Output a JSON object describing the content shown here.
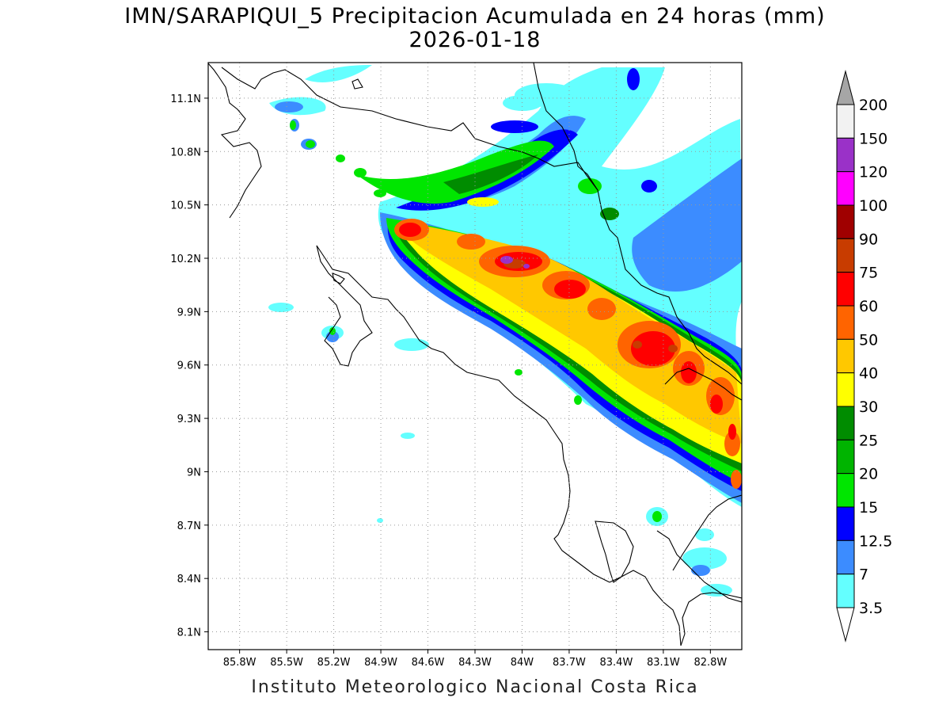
{
  "title": {
    "line1": "IMN/SARAPIQUI_5 Precipitacion Acumulada en 24 horas (mm)",
    "line2": "2026-01-18"
  },
  "footer": "Instituto Meteorologico Nacional Costa Rica",
  "map": {
    "lon_range": [
      -86.0,
      -82.6
    ],
    "lat_range": [
      8.0,
      11.3
    ],
    "x_tick_labels": [
      "85.8W",
      "85.5W",
      "85.2W",
      "84.9W",
      "84.6W",
      "84.3W",
      "84W",
      "83.7W",
      "83.4W",
      "83.1W",
      "82.8W"
    ],
    "x_tick_values": [
      -85.8,
      -85.5,
      -85.2,
      -84.9,
      -84.6,
      -84.3,
      -84.0,
      -83.7,
      -83.4,
      -83.1,
      -82.8
    ],
    "y_tick_labels": [
      "11.1N",
      "10.8N",
      "10.5N",
      "10.2N",
      "9.9N",
      "9.6N",
      "9.3N",
      "9N",
      "8.7N",
      "8.4N",
      "8.1N"
    ],
    "y_tick_values": [
      11.1,
      10.8,
      10.5,
      10.2,
      9.9,
      9.6,
      9.3,
      9.0,
      8.7,
      8.4,
      8.1
    ],
    "grid": "dotted"
  },
  "colorbar": {
    "labels": [
      "200",
      "150",
      "120",
      "100",
      "90",
      "75",
      "60",
      "50",
      "40",
      "30",
      "25",
      "20",
      "15",
      "12.5",
      "7",
      "3.5"
    ],
    "colors": [
      "#f2f2f2",
      "#9a31c8",
      "#ff00ff",
      "#a00000",
      "#c83c00",
      "#ff0000",
      "#ff6400",
      "#ffc800",
      "#ffff00",
      "#008c00",
      "#00b400",
      "#00e600",
      "#0000ff",
      "#3c8cff",
      "#64ffff"
    ],
    "top_arrow_color": "#a6a6a6",
    "bottom_arrow_color": "#ffffff"
  }
}
